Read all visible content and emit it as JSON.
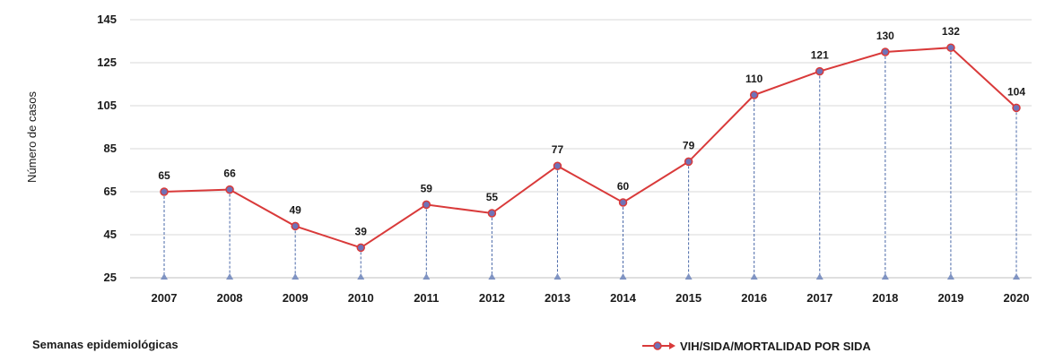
{
  "chart_data": {
    "type": "line",
    "title": "",
    "xlabel": "Semanas epidemiológicas",
    "ylabel": "Número de casos",
    "x": [
      "2007",
      "2008",
      "2009",
      "2010",
      "2011",
      "2012",
      "2013",
      "2014",
      "2015",
      "2016",
      "2017",
      "2018",
      "2019",
      "2020"
    ],
    "series": [
      {
        "name": "VIH/SIDA/MORTALIDAD POR SIDA",
        "values": [
          65,
          66,
          49,
          39,
          59,
          55,
          77,
          60,
          79,
          110,
          121,
          130,
          132,
          104
        ]
      }
    ],
    "yticks": [
      25,
      45,
      65,
      85,
      105,
      125,
      145
    ],
    "ylim": [
      25,
      145
    ],
    "grid": "horizontal",
    "legend_position": "bottom-right",
    "colors": {
      "line": "#d93a3a",
      "marker_fill": "#6f73b8",
      "drop_line": "#4a68a8",
      "grid": "#d9d9d9"
    }
  }
}
